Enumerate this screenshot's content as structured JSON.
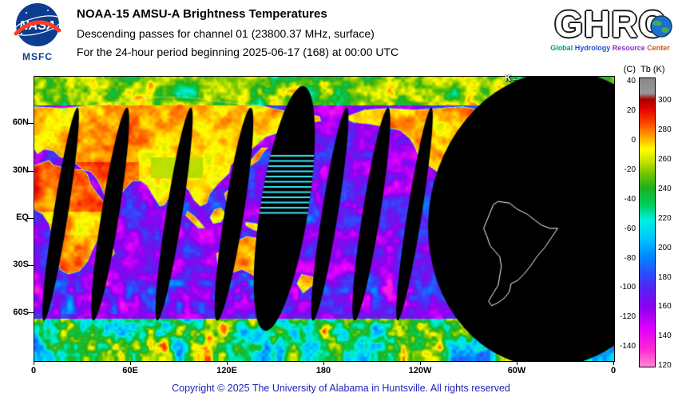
{
  "header": {
    "nasa_text": "NASA",
    "nasa_center": "MSFC",
    "title": "NOAA-15 AMSU-A Brightness Temperatures",
    "subtitle_channel": "Descending passes for channel 01 (23800.37 MHz, surface)",
    "subtitle_period": "For the 24-hour period beginning 2025-06-17 (168) at 00:00 UTC",
    "ghrc_text": "GHRC",
    "ghrc_tagline_words": [
      "Global",
      "Hydrology",
      "Resource",
      "Center"
    ]
  },
  "map": {
    "lat_labels": [
      "60N",
      "30N",
      "EQ",
      "30S",
      "60S"
    ],
    "lon_labels": [
      "0",
      "60E",
      "120E",
      "180",
      "120W",
      "60W",
      "0"
    ],
    "cursor_label": "K←",
    "no_data_color": "#000000"
  },
  "colorbar": {
    "unit_left": "(C)",
    "unit_right": "Tb (K)",
    "k_ticks": [
      "300",
      "280",
      "260",
      "240",
      "220",
      "200",
      "180",
      "160",
      "140",
      "120"
    ],
    "c_ticks": [
      "40",
      "20",
      "0",
      "-20",
      "-40",
      "-60",
      "-80",
      "-100",
      "-120",
      "-140"
    ],
    "range_k": [
      120,
      316
    ],
    "palette": [
      [
        120,
        "#ff8ad8"
      ],
      [
        132,
        "#ff2ad0"
      ],
      [
        146,
        "#e000ff"
      ],
      [
        160,
        "#9000f0"
      ],
      [
        172,
        "#5a20f0"
      ],
      [
        184,
        "#2a50ff"
      ],
      [
        196,
        "#008cff"
      ],
      [
        208,
        "#00c8ff"
      ],
      [
        220,
        "#00f0e0"
      ],
      [
        230,
        "#00d060"
      ],
      [
        242,
        "#20b020"
      ],
      [
        252,
        "#7ac800"
      ],
      [
        260,
        "#c8e400"
      ],
      [
        268,
        "#ffff00"
      ],
      [
        277,
        "#ffa000"
      ],
      [
        286,
        "#ff4400"
      ],
      [
        296,
        "#e00000"
      ],
      [
        302,
        "#a80000"
      ],
      [
        306,
        "#989898"
      ],
      [
        316,
        "#8a8a8a"
      ]
    ]
  },
  "footer": {
    "copyright": "Copyright © 2025 The University of Alabama in Huntsville. All rights reserved"
  }
}
